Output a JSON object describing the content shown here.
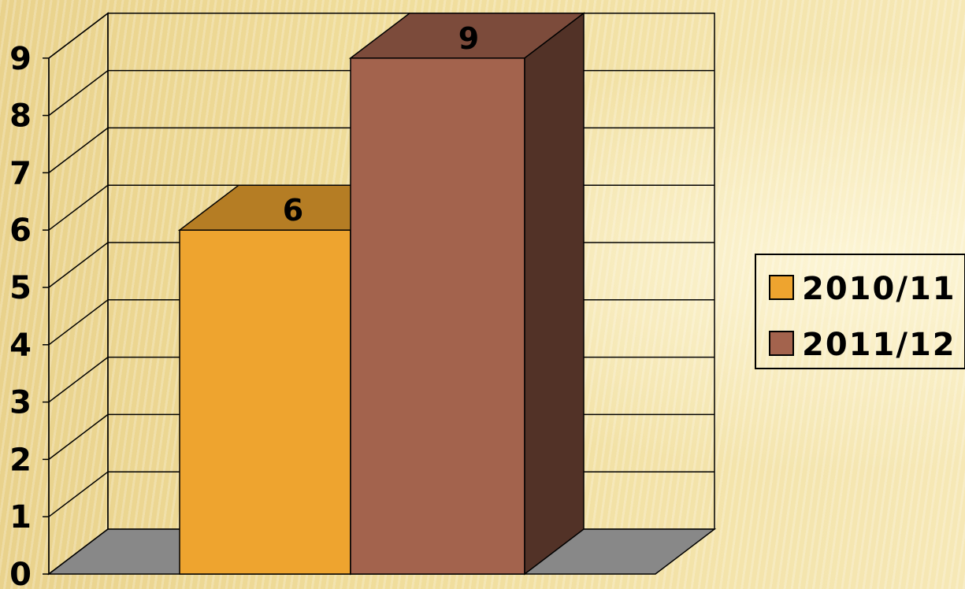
{
  "chart_data": {
    "type": "bar",
    "categories": [
      ""
    ],
    "series": [
      {
        "name": "2010/11",
        "values": [
          6
        ],
        "color": "#eea42f"
      },
      {
        "name": "2011/12",
        "values": [
          9
        ],
        "color": "#a3634d"
      }
    ],
    "data_labels": [
      "6",
      "9"
    ],
    "yticks": [
      "0",
      "1",
      "2",
      "3",
      "4",
      "5",
      "6",
      "7",
      "8",
      "9"
    ],
    "ylim": [
      0,
      9
    ],
    "grid": true,
    "legend": "right",
    "title": "",
    "xlabel": "",
    "ylabel": ""
  }
}
